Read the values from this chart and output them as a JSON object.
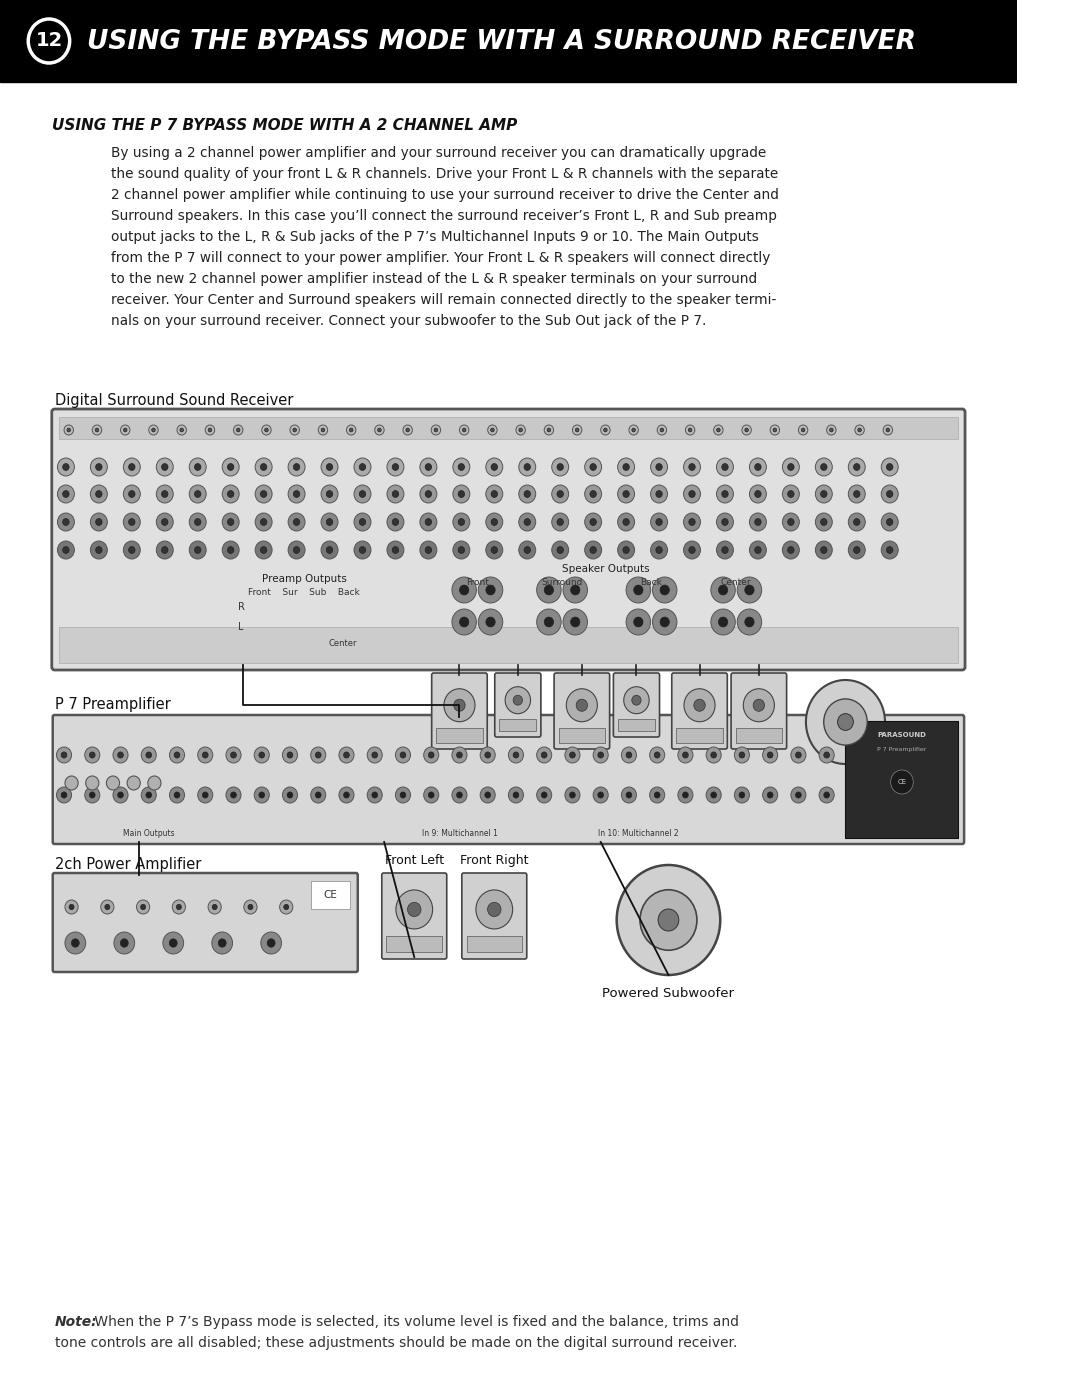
{
  "page_bg": "#ffffff",
  "header_bg": "#000000",
  "header_text_color": "#ffffff",
  "header_number": "12",
  "header_title": "USING THE BYPASS MODE WITH A SURROUND RECEIVER",
  "section_title": "USING THE P 7 BYPASS MODE WITH A 2 CHANNEL AMP",
  "body_text": "By using a 2 channel power amplifier and your surround receiver you can dramatically upgrade\nthe sound quality of your front L & R channels. Drive your Front L & R channels with the separate\n2 channel power amplifier while continuing to use your surround receiver to drive the Center and\nSurround speakers. In this case you’ll connect the surround receiver’s Front L, R and Sub preamp\noutput jacks to the L, R & Sub jacks of the P 7’s Multichannel Inputs 9 or 10. The Main Outputs\nfrom the P 7 will connect to your power amplifier. Your Front L & R speakers will connect directly\nto the new 2 channel power amplifier instead of the L & R speaker terminals on your surround\nreceiver. Your Center and Surround speakers will remain connected directly to the speaker termi-\nnals on your surround receiver. Connect your subwoofer to the Sub Out jack of the P 7.",
  "label_surround": "Digital Surround Sound Receiver",
  "label_p7": "P 7 Preamplifier",
  "label_2ch": "2ch Power Amplifier",
  "label_front_left": "Front Left",
  "label_front_right": "Front Right",
  "label_subwoofer": "Powered Subwoofer",
  "label_preamp_outputs": "Preamp Outputs",
  "label_speaker_outputs": "Speaker Outputs",
  "label_front_ch": "Front",
  "label_surround_ch": "Surround",
  "label_back_ch": "Back",
  "label_center_ch": "Center",
  "note_bold": "Note:",
  "note_line1_pre": " When the P 7’s Bypass mode is selected, its ",
  "note_underline": "volume level is fixed",
  "note_line1_post": " and the balance, trims and",
  "note_line2": "tone controls are all disabled; these adjustments should be made on the digital surround receiver.",
  "body_color": "#1a1a1a",
  "label_color": "#000000",
  "note_color": "#333333"
}
